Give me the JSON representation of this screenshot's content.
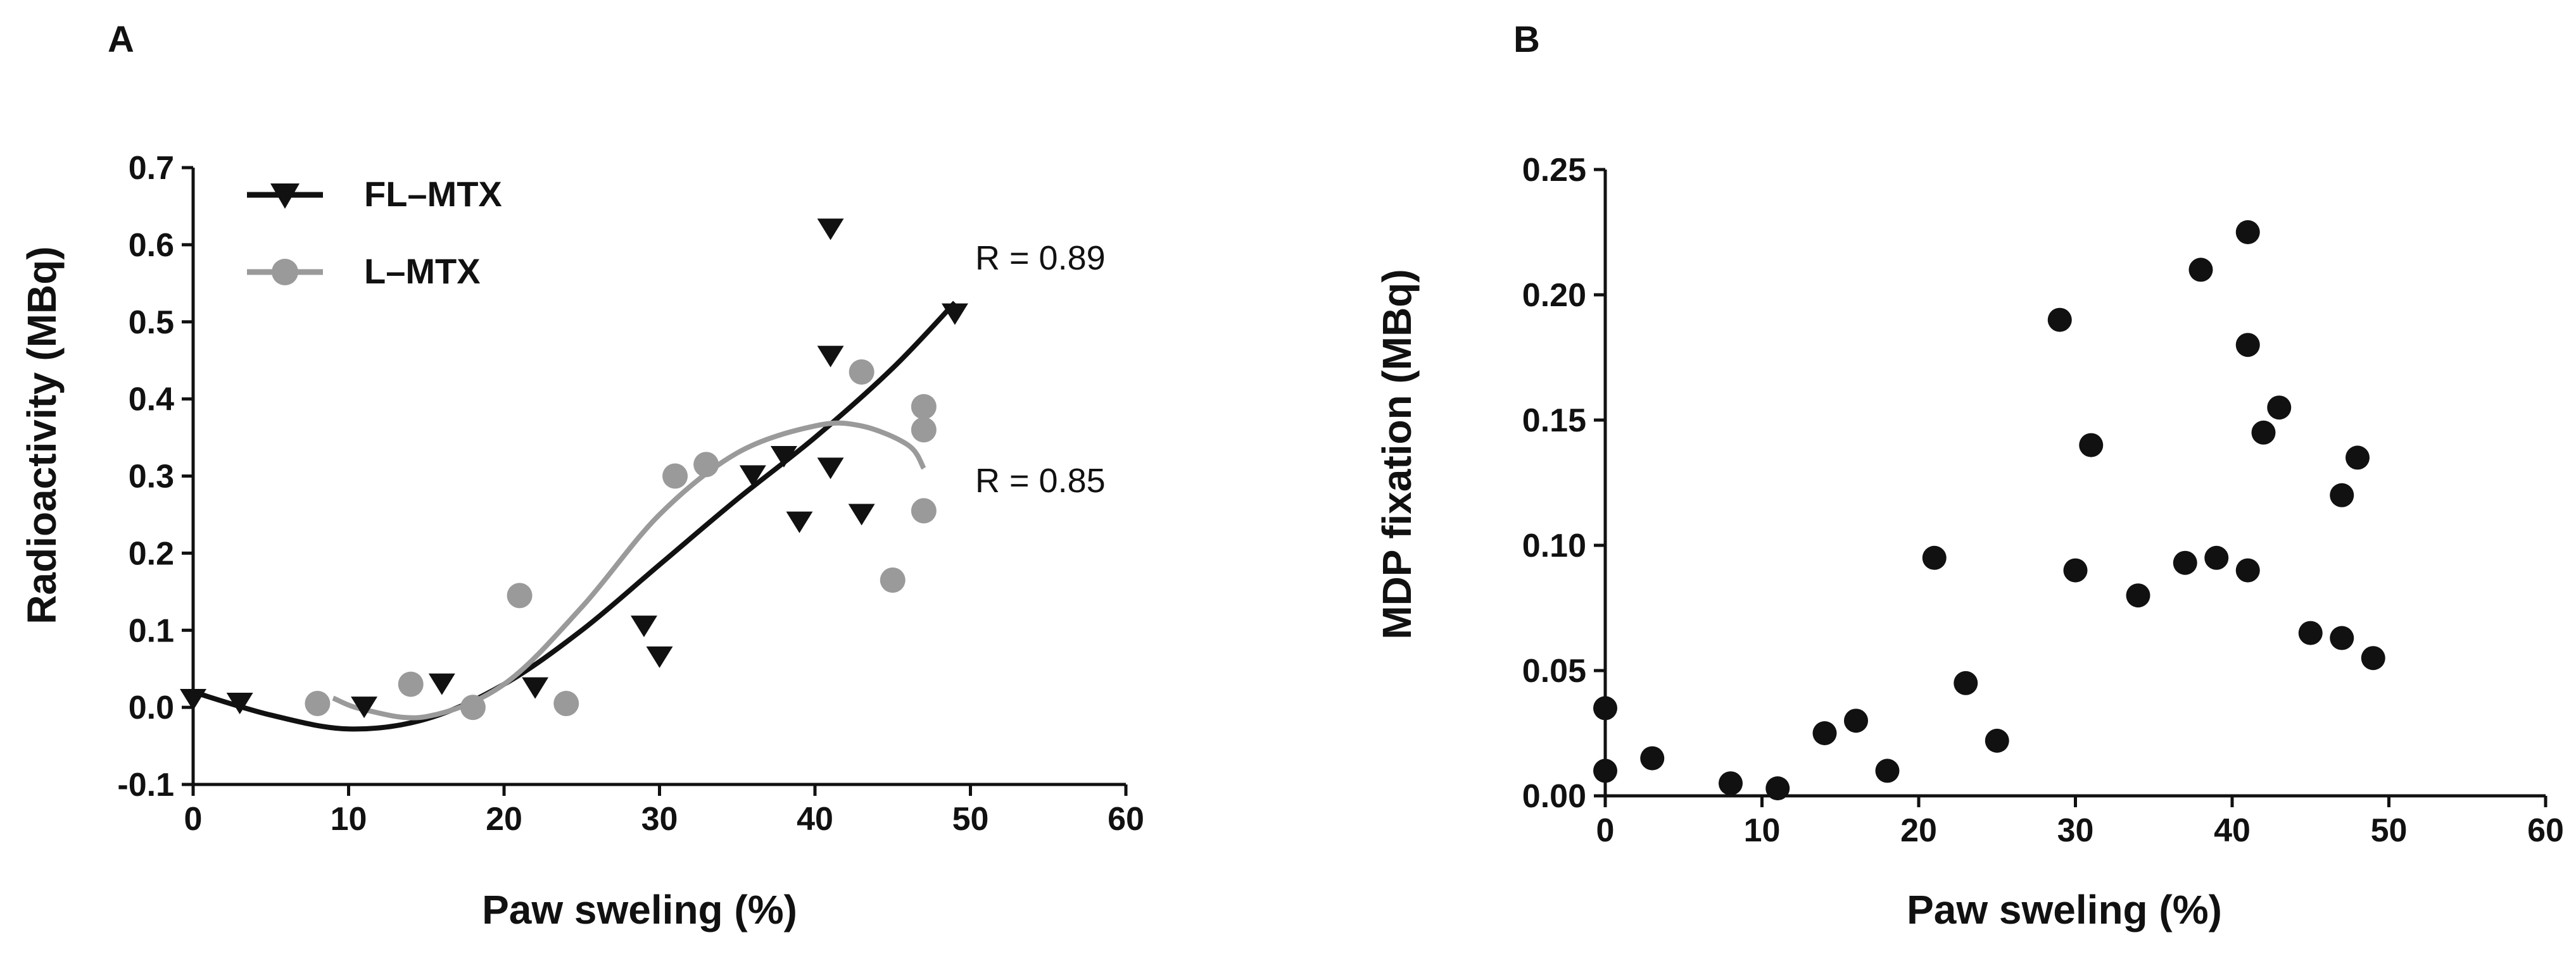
{
  "chart_data": [
    {
      "panel": "A",
      "type": "scatter",
      "xlabel": "Paw sweling (%)",
      "ylabel": "Radioactivity (MBq)",
      "xlim": [
        0,
        60
      ],
      "ylim": [
        -0.1,
        0.7
      ],
      "xticks": [
        0,
        10,
        20,
        30,
        40,
        50,
        60
      ],
      "xtick_labels": [
        "0",
        "10",
        "20",
        "30",
        "40",
        "50",
        "60"
      ],
      "yticks": [
        -0.1,
        0.0,
        0.1,
        0.2,
        0.3,
        0.4,
        0.5,
        0.6,
        0.7
      ],
      "ytick_labels": [
        "-0.1",
        "0.0",
        "0.1",
        "0.2",
        "0.3",
        "0.4",
        "0.5",
        "0.6",
        "0.7"
      ],
      "legend_position": "top-left",
      "series": [
        {
          "name": "FL–MTX",
          "marker": "triangle-down",
          "color": "#111111",
          "x": [
            0,
            3,
            11,
            16,
            22,
            29,
            30,
            36,
            38,
            39,
            41,
            41,
            41,
            43,
            49
          ],
          "y": [
            0.01,
            0.005,
            0.0,
            0.03,
            0.025,
            0.105,
            0.065,
            0.3,
            0.325,
            0.24,
            0.62,
            0.455,
            0.31,
            0.25,
            0.51
          ],
          "fit": {
            "x": [
              0,
              5,
              10,
              15,
              20,
              25,
              30,
              35,
              40,
              45,
              49
            ],
            "y": [
              0.02,
              -0.01,
              -0.028,
              -0.015,
              0.03,
              0.1,
              0.185,
              0.27,
              0.35,
              0.44,
              0.525
            ]
          },
          "r_label": "R = 0.89"
        },
        {
          "name": "L–MTX",
          "marker": "circle",
          "color": "#9a9a9a",
          "x": [
            8,
            14,
            18,
            21,
            24,
            31,
            33,
            43,
            45,
            47,
            47,
            47
          ],
          "y": [
            0.005,
            0.03,
            0.0,
            0.145,
            0.005,
            0.3,
            0.315,
            0.435,
            0.165,
            0.39,
            0.36,
            0.255
          ],
          "fit": {
            "x": [
              9,
              11,
              15,
              20,
              25,
              30,
              35,
              40,
              43,
              46,
              47
            ],
            "y": [
              0.012,
              -0.003,
              -0.012,
              0.03,
              0.13,
              0.25,
              0.33,
              0.365,
              0.365,
              0.34,
              0.31
            ]
          },
          "r_label": "R = 0.85"
        }
      ]
    },
    {
      "panel": "B",
      "type": "scatter",
      "xlabel": "Paw sweling (%)",
      "ylabel": "MDP fixation (MBq)",
      "xlim": [
        0,
        60
      ],
      "ylim": [
        0.0,
        0.25
      ],
      "xticks": [
        0,
        10,
        20,
        30,
        40,
        50,
        60
      ],
      "xtick_labels": [
        "0",
        "10",
        "20",
        "30",
        "40",
        "50",
        "60"
      ],
      "yticks": [
        0.0,
        0.05,
        0.1,
        0.15,
        0.2,
        0.25
      ],
      "ytick_labels": [
        "0.00",
        "0.05",
        "0.10",
        "0.15",
        "0.20",
        "0.25"
      ],
      "series": [
        {
          "name": "MDP",
          "marker": "circle",
          "color": "#111111",
          "x": [
            0,
            0,
            3,
            8,
            11,
            14,
            16,
            18,
            21,
            23,
            25,
            29,
            30,
            31,
            34,
            37,
            38,
            39,
            41,
            41,
            41,
            42,
            43,
            45,
            47,
            47,
            48,
            49
          ],
          "y": [
            0.035,
            0.01,
            0.015,
            0.005,
            0.003,
            0.025,
            0.03,
            0.01,
            0.095,
            0.045,
            0.022,
            0.19,
            0.09,
            0.14,
            0.08,
            0.093,
            0.21,
            0.095,
            0.225,
            0.18,
            0.09,
            0.145,
            0.155,
            0.065,
            0.12,
            0.063,
            0.135,
            0.055
          ]
        }
      ]
    }
  ]
}
